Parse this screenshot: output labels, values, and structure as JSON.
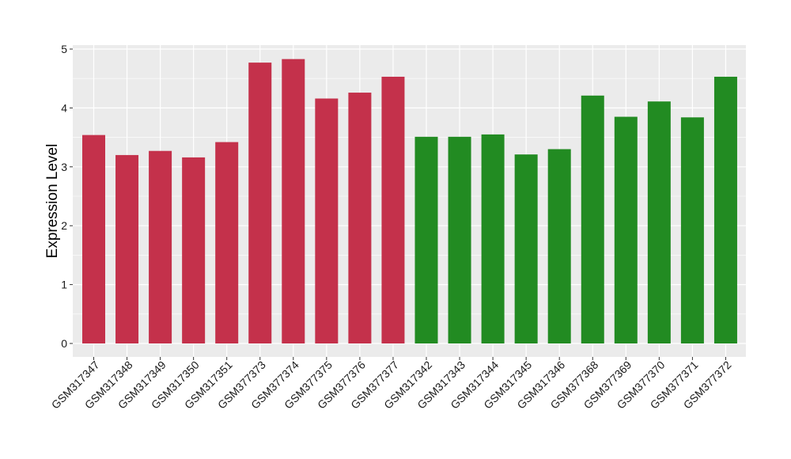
{
  "chart_data": {
    "type": "bar",
    "title": "",
    "xlabel": "",
    "ylabel": "Expression Level",
    "ylim": [
      0,
      5
    ],
    "yticks": [
      0,
      1,
      2,
      3,
      4,
      5
    ],
    "grid": true,
    "legend": "none",
    "categories": [
      "GSM317347",
      "GSM317348",
      "GSM317349",
      "GSM317350",
      "GSM317351",
      "GSM377373",
      "GSM377374",
      "GSM377375",
      "GSM377376",
      "GSM377377",
      "GSM317342",
      "GSM317343",
      "GSM317344",
      "GSM317345",
      "GSM317346",
      "GSM377368",
      "GSM377369",
      "GSM377370",
      "GSM377371",
      "GSM377372"
    ],
    "values": [
      3.54,
      3.2,
      3.27,
      3.16,
      3.42,
      4.77,
      4.83,
      4.16,
      4.26,
      4.53,
      3.51,
      3.51,
      3.55,
      3.21,
      3.3,
      4.21,
      3.85,
      4.11,
      3.84,
      4.53
    ],
    "bar_colors": [
      "#c4314b",
      "#c4314b",
      "#c4314b",
      "#c4314b",
      "#c4314b",
      "#c4314b",
      "#c4314b",
      "#c4314b",
      "#c4314b",
      "#c4314b",
      "#228b22",
      "#228b22",
      "#228b22",
      "#228b22",
      "#228b22",
      "#228b22",
      "#228b22",
      "#228b22",
      "#228b22",
      "#228b22"
    ],
    "panel_background": "#ebebeb",
    "grid_color": "#ffffff"
  }
}
